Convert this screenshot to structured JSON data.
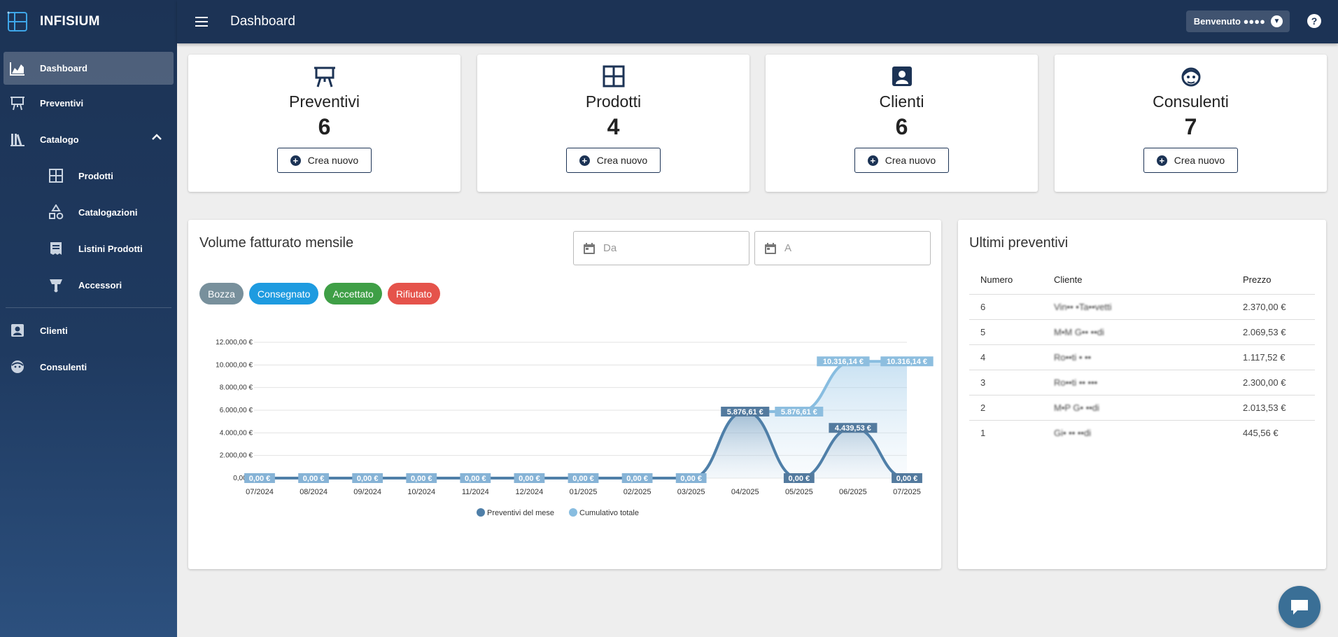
{
  "app": {
    "name": "INFISIUM"
  },
  "header": {
    "title": "Dashboard",
    "welcome": "Benvenuto ●●●●",
    "help": "?"
  },
  "sidebar": {
    "items": [
      {
        "label": "Dashboard",
        "icon": "chart-area-icon",
        "active": true
      },
      {
        "label": "Preventivi",
        "icon": "easel-icon"
      },
      {
        "label": "Catalogo",
        "icon": "library-icon",
        "expanded": true
      },
      {
        "label": "Prodotti",
        "icon": "grid-icon"
      },
      {
        "label": "Catalogazioni",
        "icon": "shapes-icon"
      },
      {
        "label": "Listini Prodotti",
        "icon": "receipt-icon"
      },
      {
        "label": "Accessori",
        "icon": "accessory-icon"
      },
      {
        "label": "Clienti",
        "icon": "contact-icon"
      },
      {
        "label": "Consulenti",
        "icon": "face-agent-icon"
      }
    ]
  },
  "stats": [
    {
      "label": "Preventivi",
      "value": "6",
      "button": "Crea nuovo",
      "icon": "easel-icon"
    },
    {
      "label": "Prodotti",
      "value": "4",
      "button": "Crea nuovo",
      "icon": "grid-icon"
    },
    {
      "label": "Clienti",
      "value": "6",
      "button": "Crea nuovo",
      "icon": "contact-icon"
    },
    {
      "label": "Consulenti",
      "value": "7",
      "button": "Crea nuovo",
      "icon": "face-agent-icon"
    }
  ],
  "volume": {
    "title": "Volume fatturato mensile",
    "date_from_placeholder": "Da",
    "date_to_placeholder": "A",
    "chips": [
      {
        "label": "Bozza",
        "color": "#78909c"
      },
      {
        "label": "Consegnato",
        "color": "#1e9be0"
      },
      {
        "label": "Accettato",
        "color": "#3f9f46"
      },
      {
        "label": "Rifiutato",
        "color": "#e5534b"
      }
    ]
  },
  "chart_data": {
    "type": "area",
    "categories": [
      "07/2024",
      "08/2024",
      "09/2024",
      "10/2024",
      "11/2024",
      "12/2024",
      "01/2025",
      "02/2025",
      "03/2025",
      "04/2025",
      "05/2025",
      "06/2025",
      "07/2025"
    ],
    "y_ticks": [
      "0,00 €",
      "2.000,00 €",
      "4.000,00 €",
      "6.000,00 €",
      "8.000,00 €",
      "10.000,00 €",
      "12.000,00 €"
    ],
    "ylim": [
      0,
      12000
    ],
    "series": [
      {
        "name": "Preventivi del mese",
        "color": "#4f7fa8",
        "values": [
          0,
          0,
          0,
          0,
          0,
          0,
          0,
          0,
          0,
          5876.61,
          0,
          4439.53,
          0
        ],
        "labels": [
          "0,00 €",
          "0,00 €",
          "0,00 €",
          "0,00 €",
          "0,00 €",
          "0,00 €",
          "0,00 €",
          "0,00 €",
          "0,00 €",
          "5.876,61 €",
          "0,00 €",
          "4.439,53 €",
          "0,00 €"
        ]
      },
      {
        "name": "Cumulativo totale",
        "color": "#88bde0",
        "values": [
          0,
          0,
          0,
          0,
          0,
          0,
          0,
          0,
          0,
          5876.61,
          5876.61,
          10316.14,
          10316.14
        ],
        "labels": [
          "0,00 €",
          "0,00 €",
          "0,00 €",
          "0,00 €",
          "0,00 €",
          "0,00 €",
          "0,00 €",
          "0,00 €",
          "0,00 €",
          "5.876,61 €",
          "5.876,61 €",
          "10.316,14 €",
          "10.316,14 €"
        ]
      }
    ],
    "legend": "bottom",
    "grid": true
  },
  "recent": {
    "title": "Ultimi preventivi",
    "columns": [
      "Numero",
      "Cliente",
      "Prezzo"
    ],
    "rows": [
      {
        "numero": "6",
        "cliente": "Vin•• •Ta••vetti",
        "prezzo": "2.370,00 €"
      },
      {
        "numero": "5",
        "cliente": "M•M G•• ••di",
        "prezzo": "2.069,53 €"
      },
      {
        "numero": "4",
        "cliente": "Ro••ti • ••",
        "prezzo": "1.117,52 €"
      },
      {
        "numero": "3",
        "cliente": "Ro••ti •• •••",
        "prezzo": "2.300,00 €"
      },
      {
        "numero": "2",
        "cliente": "M•P G• ••di",
        "prezzo": "2.013,53 €"
      },
      {
        "numero": "1",
        "cliente": "Gi• •• ••di",
        "prezzo": "445,56 €"
      }
    ]
  }
}
